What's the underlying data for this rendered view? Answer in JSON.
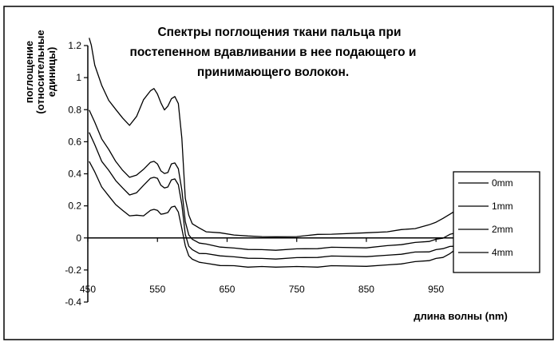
{
  "chart_data": {
    "type": "line",
    "title_lines": [
      "Спектры поглощения ткани пальца при",
      "постепенном вдавливании в нее подающего и",
      "принимающего волокон."
    ],
    "ylabel_lines": [
      "поглощение",
      "(относительные",
      "единицы)"
    ],
    "xlabel": "длина волны (nm)",
    "xlim": [
      450,
      975
    ],
    "ylim": [
      -0.4,
      1.2
    ],
    "x_ticks": [
      "450",
      "550",
      "650",
      "750",
      "850",
      "950"
    ],
    "y_ticks": [
      "1.2",
      "1",
      "0.8",
      "0.6",
      "0.4",
      "0.2",
      "0",
      "-0.2",
      "-0.4"
    ],
    "grid": false,
    "legend_position": "right",
    "series": [
      {
        "name": "0mm",
        "x": [
          452,
          455,
          460,
          470,
          480,
          490,
          500,
          510,
          520,
          530,
          540,
          545,
          550,
          555,
          560,
          565,
          570,
          575,
          580,
          585,
          590,
          595,
          600,
          610,
          620,
          640,
          660,
          680,
          700,
          720,
          750,
          780,
          800,
          850,
          880,
          900,
          920,
          940,
          950,
          960,
          970,
          975
        ],
        "y": [
          1.25,
          1.2,
          1.08,
          0.95,
          0.86,
          0.8,
          0.75,
          0.7,
          0.76,
          0.86,
          0.92,
          0.93,
          0.9,
          0.84,
          0.8,
          0.82,
          0.87,
          0.88,
          0.84,
          0.62,
          0.25,
          0.14,
          0.09,
          0.06,
          0.04,
          0.03,
          0.02,
          0.01,
          0.01,
          0.005,
          0.01,
          0.02,
          0.025,
          0.03,
          0.04,
          0.05,
          0.06,
          0.08,
          0.1,
          0.12,
          0.15,
          0.16
        ]
      },
      {
        "name": "1mm",
        "x": [
          452,
          460,
          470,
          480,
          490,
          500,
          510,
          520,
          530,
          540,
          545,
          550,
          555,
          560,
          565,
          570,
          575,
          580,
          585,
          590,
          595,
          600,
          610,
          620,
          640,
          660,
          680,
          700,
          720,
          750,
          780,
          800,
          850,
          880,
          900,
          920,
          940,
          950,
          960,
          970,
          975
        ],
        "y": [
          0.8,
          0.72,
          0.62,
          0.55,
          0.48,
          0.42,
          0.38,
          0.39,
          0.43,
          0.47,
          0.48,
          0.46,
          0.42,
          0.4,
          0.41,
          0.46,
          0.47,
          0.43,
          0.3,
          0.1,
          0.02,
          -0.01,
          -0.03,
          -0.04,
          -0.055,
          -0.065,
          -0.07,
          -0.075,
          -0.075,
          -0.07,
          -0.065,
          -0.06,
          -0.06,
          -0.05,
          -0.04,
          -0.03,
          -0.02,
          -0.01,
          0.0,
          0.02,
          0.03
        ]
      },
      {
        "name": "2mm",
        "x": [
          452,
          460,
          470,
          480,
          490,
          500,
          510,
          520,
          530,
          540,
          545,
          550,
          555,
          560,
          565,
          570,
          575,
          580,
          585,
          590,
          595,
          600,
          610,
          620,
          640,
          660,
          680,
          700,
          720,
          750,
          780,
          800,
          850,
          880,
          900,
          920,
          940,
          950,
          960,
          970,
          975
        ],
        "y": [
          0.66,
          0.58,
          0.48,
          0.42,
          0.36,
          0.31,
          0.27,
          0.28,
          0.33,
          0.37,
          0.38,
          0.37,
          0.33,
          0.31,
          0.32,
          0.36,
          0.37,
          0.33,
          0.21,
          0.02,
          -0.05,
          -0.075,
          -0.095,
          -0.1,
          -0.11,
          -0.12,
          -0.125,
          -0.13,
          -0.13,
          -0.125,
          -0.12,
          -0.115,
          -0.115,
          -0.11,
          -0.1,
          -0.09,
          -0.085,
          -0.075,
          -0.065,
          -0.055,
          -0.05
        ]
      },
      {
        "name": "4mm",
        "x": [
          452,
          460,
          470,
          480,
          490,
          500,
          510,
          520,
          530,
          540,
          545,
          550,
          555,
          560,
          565,
          570,
          575,
          580,
          585,
          590,
          595,
          600,
          610,
          620,
          640,
          660,
          680,
          700,
          720,
          750,
          780,
          800,
          850,
          880,
          900,
          920,
          940,
          950,
          960,
          970,
          975
        ],
        "y": [
          0.48,
          0.41,
          0.32,
          0.26,
          0.21,
          0.17,
          0.14,
          0.14,
          0.14,
          0.17,
          0.18,
          0.17,
          0.15,
          0.15,
          0.16,
          0.19,
          0.2,
          0.16,
          0.06,
          -0.05,
          -0.11,
          -0.135,
          -0.15,
          -0.16,
          -0.17,
          -0.175,
          -0.18,
          -0.18,
          -0.18,
          -0.18,
          -0.18,
          -0.175,
          -0.175,
          -0.17,
          -0.16,
          -0.15,
          -0.14,
          -0.13,
          -0.12,
          -0.1,
          -0.08
        ]
      }
    ]
  }
}
